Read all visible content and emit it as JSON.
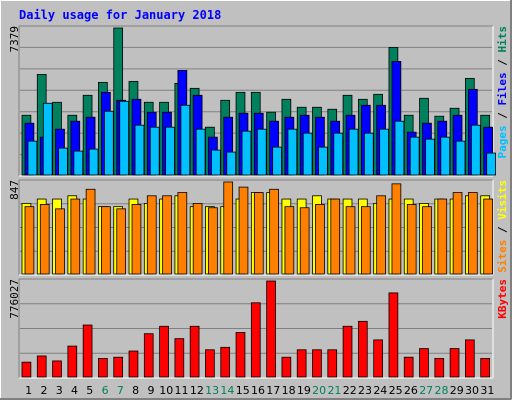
{
  "chart_data": {
    "type": "bar",
    "title": "Daily usage for January 2018",
    "days": [
      "1",
      "2",
      "3",
      "4",
      "5",
      "6",
      "7",
      "8",
      "9",
      "10",
      "11",
      "12",
      "13",
      "14",
      "15",
      "16",
      "17",
      "18",
      "19",
      "20",
      "21",
      "22",
      "23",
      "24",
      "25",
      "26",
      "27",
      "28",
      "29",
      "30",
      "31"
    ],
    "weekend_days": [
      "6",
      "7",
      "13",
      "14",
      "20",
      "21",
      "27",
      "28"
    ],
    "colors": {
      "background": "#C0C0C0",
      "panel": "#C0C0C0",
      "hits": "#00805C",
      "files": "#0000FF",
      "pages": "#00C0FF",
      "visits": "#FFFF00",
      "sites": "#FF8000",
      "kbytes": "#FF0000",
      "title": "#0000FF",
      "weekday_label": "#000000",
      "weekend_label": "#00805C"
    },
    "panels": [
      {
        "id": "hits-files-pages",
        "ymax_label": "7379",
        "ymax": 7379,
        "legend": [
          {
            "text": "Pages",
            "color": "#00C0FF"
          },
          {
            "text": " / ",
            "color": "#000000"
          },
          {
            "text": "Files",
            "color": "#0000FF"
          },
          {
            "text": " / ",
            "color": "#000000"
          },
          {
            "text": "Hits",
            "color": "#00805C"
          }
        ],
        "series": [
          {
            "name": "Hits",
            "color": "#00805C",
            "values": [
              3000,
              5050,
              3650,
              3000,
              4000,
              4650,
              7379,
              4700,
              3650,
              3650,
              4600,
              4350,
              2400,
              3750,
              4150,
              4150,
              3150,
              3800,
              3400,
              3400,
              3300,
              4000,
              3800,
              4050,
              6400,
              3000,
              3850,
              2950,
              3350,
              4850,
              3000
            ]
          },
          {
            "name": "Files",
            "color": "#0000FF",
            "values": [
              2600,
              1900,
              2300,
              2700,
              2900,
              4150,
              3750,
              3800,
              3150,
              3150,
              5250,
              4000,
              1900,
              2900,
              3100,
              3100,
              2700,
              2900,
              3000,
              2900,
              2700,
              3000,
              3500,
              3500,
              5700,
              2150,
              2600,
              2700,
              3000,
              4300,
              2400
            ]
          },
          {
            "name": "Pages",
            "color": "#00C0FF",
            "values": [
              1700,
              3600,
              1350,
              1200,
              1300,
              3200,
              3700,
              2500,
              2400,
              2400,
              3500,
              2300,
              1250,
              1150,
              2200,
              2300,
              1400,
              2300,
              2100,
              1400,
              2100,
              2300,
              2100,
              2300,
              2700,
              1900,
              1800,
              1900,
              1700,
              2500,
              1100
            ]
          }
        ]
      },
      {
        "id": "visits-sites",
        "ymax_label": "847",
        "ymax": 847,
        "legend": [
          {
            "text": "Sites",
            "color": "#FF8000"
          },
          {
            "text": " / ",
            "color": "#000000"
          },
          {
            "text": "Visits",
            "color": "#FFFF00"
          }
        ],
        "series": [
          {
            "name": "Visits",
            "color": "#FFFF00",
            "values": [
              650,
              690,
              690,
              720,
              690,
              620,
              620,
              690,
              650,
              690,
              720,
              620,
              620,
              620,
              690,
              750,
              750,
              690,
              690,
              720,
              690,
              690,
              690,
              650,
              690,
              690,
              650,
              690,
              690,
              720,
              720
            ]
          },
          {
            "name": "Sites",
            "color": "#FF8000",
            "values": [
              620,
              640,
              600,
              690,
              780,
              620,
              600,
              640,
              720,
              720,
              750,
              650,
              610,
              847,
              800,
              750,
              780,
              620,
              610,
              640,
              690,
              620,
              620,
              720,
              830,
              640,
              620,
              690,
              750,
              750,
              690
            ]
          }
        ]
      },
      {
        "id": "kbytes",
        "ymax_label": "776027",
        "ymax": 776027,
        "legend": [
          {
            "text": "KBytes",
            "color": "#FF0000"
          }
        ],
        "series": [
          {
            "name": "KBytes",
            "color": "#FF0000",
            "values": [
              120000,
              170000,
              130000,
              250000,
              420000,
              150000,
              160000,
              210000,
              350000,
              410000,
              310000,
              410000,
              220000,
              240000,
              360000,
              600000,
              776027,
              160000,
              220000,
              220000,
              220000,
              410000,
              450000,
              300000,
              680000,
              160000,
              230000,
              150000,
              230000,
              300000,
              150000
            ]
          }
        ]
      }
    ]
  }
}
